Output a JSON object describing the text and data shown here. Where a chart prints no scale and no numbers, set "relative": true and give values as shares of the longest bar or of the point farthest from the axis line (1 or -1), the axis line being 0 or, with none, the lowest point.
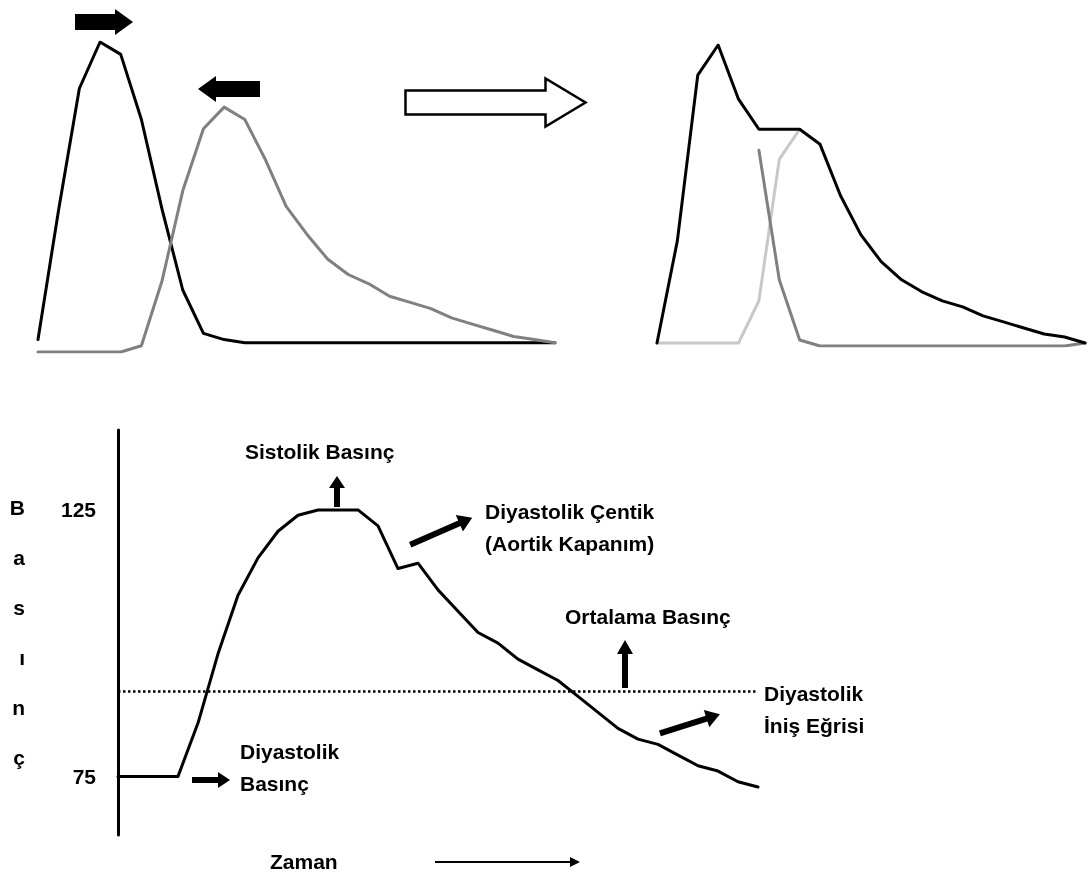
{
  "chart_data": [
    {
      "type": "line",
      "relative": true,
      "categories": [
        null,
        null,
        null,
        null,
        null,
        null,
        null,
        null,
        null,
        null,
        null,
        null,
        null,
        null,
        null,
        null,
        null,
        null,
        null,
        null,
        null,
        null,
        null,
        null,
        null,
        null
      ],
      "series": [
        {
          "color": "#000000",
          "values": [
            0.04,
            0.46,
            0.85,
            1,
            0.96,
            0.75,
            0.46,
            0.2,
            0.06,
            0.04,
            0.03,
            0.03,
            0.03,
            0.03,
            0.03,
            0.03,
            0.03,
            0.03,
            0.03,
            0.03,
            0.03,
            0.03,
            0.03,
            0.03,
            0.03,
            0.03
          ]
        },
        {
          "color": "#808080",
          "values": [
            0,
            0,
            0,
            0,
            0,
            0.02,
            0.23,
            0.52,
            0.72,
            0.79,
            0.75,
            0.62,
            0.47,
            0.38,
            0.3,
            0.25,
            0.22,
            0.18,
            0.16,
            0.14,
            0.11,
            0.09,
            0.07,
            0.05,
            0.04,
            0.03
          ]
        }
      ]
    },
    {
      "type": "line",
      "relative": true,
      "categories": [
        null,
        null,
        null,
        null,
        null,
        null,
        null,
        null,
        null,
        null,
        null,
        null,
        null,
        null,
        null,
        null,
        null,
        null,
        null,
        null,
        null,
        null
      ],
      "series": [
        {
          "color": "#c8c8c8",
          "values": [
            0.01,
            0.01,
            0.01,
            0.01,
            0.01,
            0.15,
            0.62,
            0.72,
            null,
            null,
            null,
            null,
            null,
            null,
            null,
            null,
            null,
            null,
            null,
            null,
            null,
            null
          ]
        },
        {
          "color": "#808080",
          "values": [
            null,
            null,
            null,
            null,
            null,
            0.65,
            0.22,
            0.02,
            0,
            0,
            0,
            0,
            0,
            0,
            0,
            0,
            0,
            0,
            0,
            0,
            0,
            0.01
          ]
        },
        {
          "color": "#000000",
          "values": [
            0.01,
            0.35,
            0.9,
            1,
            0.82,
            0.72,
            0.72,
            0.72,
            0.67,
            0.5,
            0.37,
            0.28,
            0.22,
            0.18,
            0.15,
            0.13,
            0.1,
            0.08,
            0.06,
            0.04,
            0.03,
            0.01
          ]
        }
      ]
    },
    {
      "type": "line",
      "xlabel": "Zaman",
      "ylabel": "Basınç",
      "ylim": [
        64,
        140
      ],
      "yticks": [
        75,
        125
      ],
      "categories": [
        null,
        null,
        null,
        null,
        null,
        null,
        null,
        null,
        null,
        null,
        null,
        null,
        null,
        null,
        null,
        null,
        null,
        null,
        null,
        null,
        null,
        null,
        null,
        null,
        null,
        null,
        null,
        null,
        null,
        null,
        null,
        null,
        null
      ],
      "series": [
        {
          "color": "#000000",
          "values": [
            75,
            75,
            75,
            75,
            85,
            98,
            109,
            116,
            121,
            124,
            125,
            125,
            125,
            122,
            114,
            115,
            110,
            106,
            102,
            100,
            97,
            95,
            93,
            90,
            87,
            84,
            82,
            81,
            79,
            77,
            76,
            74,
            73
          ]
        }
      ],
      "ref_lines": [
        {
          "axis": "y",
          "value": 91,
          "label": "Ortalama Basınç",
          "line_style": "dotted",
          "color": "#000000"
        }
      ],
      "annotations": [
        "Sistolik Basınç",
        "Diyastolik Çentik (Aortik Kapanım)",
        "Diyastolik İniş Eğrisi",
        "Diyastolik Basınç"
      ]
    }
  ]
}
